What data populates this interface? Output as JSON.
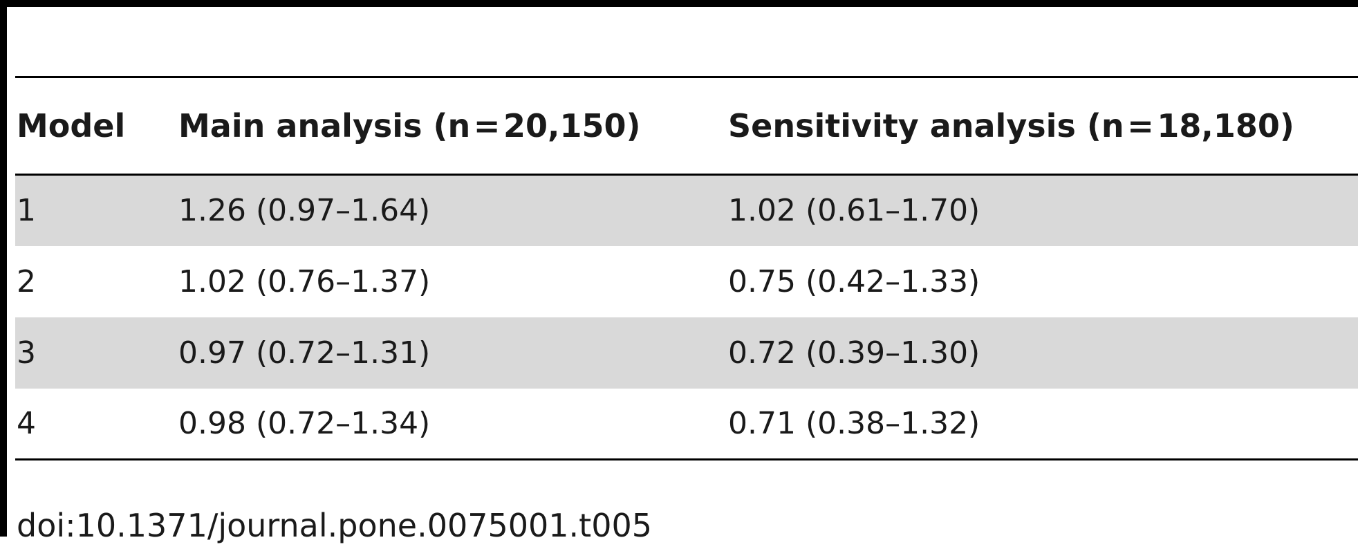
{
  "table": {
    "headers": [
      "Model",
      "Main analysis (n = 20,150)",
      "Sensitivity analysis (n = 18,180)"
    ],
    "rows": [
      [
        "1",
        "1.26 (0.97–1.64)",
        "1.02 (0.61–1.70)"
      ],
      [
        "2",
        "1.02 (0.76–1.37)",
        "0.75 (0.42–1.33)"
      ],
      [
        "3",
        "0.97 (0.72–1.31)",
        "0.72 (0.39–1.30)"
      ],
      [
        "4",
        "0.98 (0.72–1.34)",
        "0.71 (0.38–1.32)"
      ]
    ]
  },
  "footer": {
    "doi": "doi:10.1371/journal.pone.0075001.t005"
  }
}
